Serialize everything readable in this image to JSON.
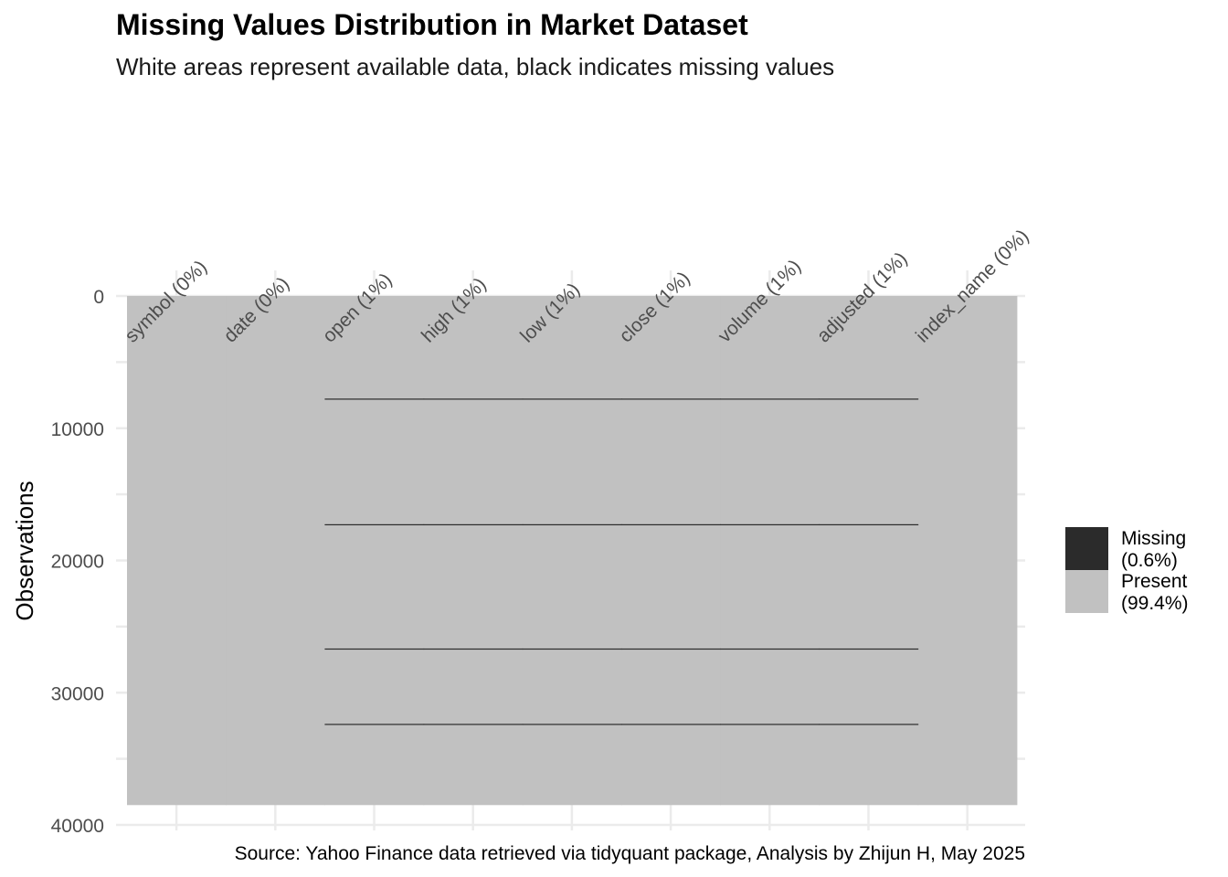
{
  "chart_data": {
    "type": "heatmap",
    "title": "Missing Values Distribution in Market Dataset",
    "subtitle": "White areas represent available data, black indicates missing values",
    "caption": "Source: Yahoo Finance data retrieved via tidyquant package, Analysis by Zhijun H, May 2025",
    "ylabel": "Observations",
    "ylim": [
      0,
      40000
    ],
    "y_ticks": [
      "0",
      "10000",
      "20000",
      "30000",
      "40000"
    ],
    "total_rows": 38500,
    "columns": [
      {
        "name": "symbol",
        "label": "symbol (0%)",
        "missing_rows": []
      },
      {
        "name": "date",
        "label": "date (0%)",
        "missing_rows": []
      },
      {
        "name": "open",
        "label": "open (1%)",
        "missing_rows": [
          7800,
          17300,
          26700,
          32400
        ]
      },
      {
        "name": "high",
        "label": "high (1%)",
        "missing_rows": [
          7800,
          17300,
          26700,
          32400
        ]
      },
      {
        "name": "low",
        "label": "low (1%)",
        "missing_rows": [
          7800,
          17300,
          26700,
          32400
        ]
      },
      {
        "name": "close",
        "label": "close (1%)",
        "missing_rows": [
          7800,
          17300,
          26700,
          32400
        ]
      },
      {
        "name": "volume",
        "label": "volume (1%)",
        "missing_rows": [
          7800,
          17300,
          26700,
          32400
        ]
      },
      {
        "name": "adjusted",
        "label": "adjusted (1%)",
        "missing_rows": [
          7800,
          17300,
          26700,
          32400
        ]
      },
      {
        "name": "index_name",
        "label": "index_name (0%)",
        "missing_rows": []
      }
    ],
    "legend": {
      "position": "right",
      "entries": [
        {
          "label_line1": "Missing",
          "label_line2": "(0.6%)",
          "color": "#2b2b2b"
        },
        {
          "label_line1": "Present",
          "label_line2": "(99.4%)",
          "color": "#c1c1c1"
        }
      ]
    },
    "colors": {
      "missing": "#2b2b2b",
      "present": "#c1c1c1",
      "grid": "#ebebeb"
    }
  }
}
